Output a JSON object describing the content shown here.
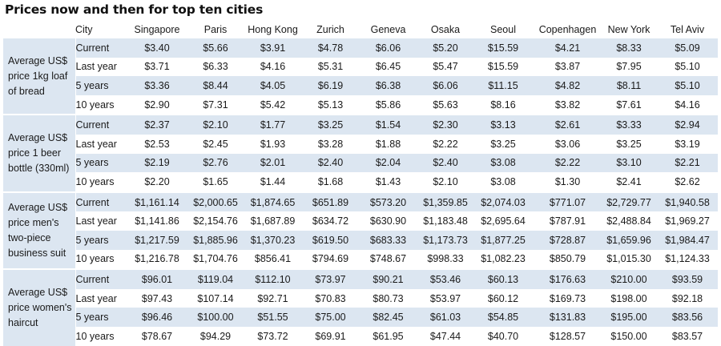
{
  "title": "Prices now and then for top ten cities",
  "header": {
    "city_label": "City",
    "cities": [
      "Singapore",
      "Paris",
      "Hong Kong",
      "Zurich",
      "Geneva",
      "Osaka",
      "Seoul",
      "Copenhagen",
      "New York",
      "Tel Aviv"
    ]
  },
  "sections": [
    {
      "metric": "Average US$ price 1kg loaf of bread",
      "rows": [
        {
          "period": "Current",
          "values": [
            "$3.40",
            "$5.66",
            "$3.91",
            "$4.78",
            "$6.06",
            "$5.20",
            "$15.59",
            "$4.21",
            "$8.33",
            "$5.09"
          ]
        },
        {
          "period": "Last year",
          "values": [
            "$3.71",
            "$6.33",
            "$4.16",
            "$5.31",
            "$6.45",
            "$5.47",
            "$15.59",
            "$3.87",
            "$7.95",
            "$5.10"
          ]
        },
        {
          "period": "5 years",
          "values": [
            "$3.36",
            "$8.44",
            "$4.05",
            "$6.19",
            "$6.38",
            "$6.06",
            "$11.15",
            "$4.82",
            "$8.11",
            "$5.10"
          ]
        },
        {
          "period": "10 years",
          "values": [
            "$2.90",
            "$7.31",
            "$5.42",
            "$5.13",
            "$5.86",
            "$5.63",
            "$8.16",
            "$3.82",
            "$7.61",
            "$4.16"
          ]
        }
      ]
    },
    {
      "metric": "Average US$ price 1 beer bottle (330ml)",
      "rows": [
        {
          "period": "Current",
          "values": [
            "$2.37",
            "$2.10",
            "$1.77",
            "$3.25",
            "$1.54",
            "$2.30",
            "$3.13",
            "$2.61",
            "$3.33",
            "$2.94"
          ]
        },
        {
          "period": "Last year",
          "values": [
            "$2.53",
            "$2.45",
            "$1.93",
            "$3.28",
            "$1.88",
            "$2.22",
            "$3.25",
            "$3.06",
            "$3.25",
            "$3.19"
          ]
        },
        {
          "period": "5 years",
          "values": [
            "$2.19",
            "$2.76",
            "$2.01",
            "$2.40",
            "$2.04",
            "$2.40",
            "$3.08",
            "$2.22",
            "$3.10",
            "$2.21"
          ]
        },
        {
          "period": "10 years",
          "values": [
            "$2.20",
            "$1.65",
            "$1.44",
            "$1.68",
            "$1.43",
            "$2.10",
            "$3.08",
            "$1.30",
            "$2.41",
            "$2.62"
          ]
        }
      ]
    },
    {
      "metric": "Average US$ price men's two-piece business suit",
      "rows": [
        {
          "period": "Current",
          "values": [
            "$1,161.14",
            "$2,000.65",
            "$1,874.65",
            "$651.89",
            "$573.20",
            "$1,359.85",
            "$2,074.03",
            "$771.07",
            "$2,729.77",
            "$1,940.58"
          ]
        },
        {
          "period": "Last year",
          "values": [
            "$1,141.86",
            "$2,154.76",
            "$1,687.89",
            "$634.72",
            "$630.90",
            "$1,183.48",
            "$2,695.64",
            "$787.91",
            "$2,488.84",
            "$1,969.27"
          ]
        },
        {
          "period": "5 years",
          "values": [
            "$1,217.59",
            "$1,885.96",
            "$1,370.23",
            "$619.50",
            "$683.33",
            "$1,173.73",
            "$1,877.25",
            "$728.87",
            "$1,659.96",
            "$1,984.47"
          ]
        },
        {
          "period": "10 years",
          "values": [
            "$1,216.78",
            "$1,704.76",
            "$856.41",
            "$794.69",
            "$748.67",
            "$998.33",
            "$1,082.23",
            "$850.79",
            "$1,015.30",
            "$1,124.33"
          ]
        }
      ]
    },
    {
      "metric": "Average US$ price women's haircut",
      "rows": [
        {
          "period": "Current",
          "values": [
            "$96.01",
            "$119.04",
            "$112.10",
            "$73.97",
            "$90.21",
            "$53.46",
            "$60.13",
            "$176.63",
            "$210.00",
            "$93.59"
          ]
        },
        {
          "period": "Last year",
          "values": [
            "$97.43",
            "$107.14",
            "$92.71",
            "$70.83",
            "$80.73",
            "$53.97",
            "$60.12",
            "$169.73",
            "$198.00",
            "$92.18"
          ]
        },
        {
          "period": "5 years",
          "values": [
            "$96.46",
            "$100.00",
            "$51.55",
            "$75.00",
            "$82.45",
            "$61.03",
            "$54.85",
            "$131.83",
            "$195.00",
            "$83.56"
          ]
        },
        {
          "period": "10 years",
          "values": [
            "$78.67",
            "$94.29",
            "$73.72",
            "$69.91",
            "$61.95",
            "$47.44",
            "$40.70",
            "$128.57",
            "$150.00",
            "$83.57"
          ]
        }
      ]
    }
  ],
  "colors": {
    "band": "#dce6f1",
    "text": "#1a1a1a"
  }
}
